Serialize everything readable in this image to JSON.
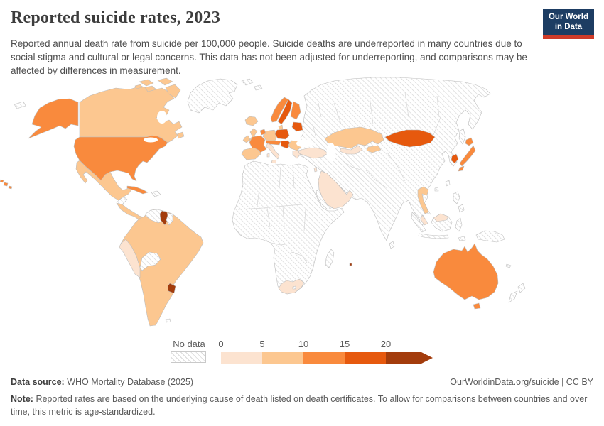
{
  "header": {
    "title": "Reported suicide rates, 2023",
    "subtitle": "Reported annual death rate from suicide per 100,000 people. Suicide deaths are underreported in many countries due to social stigma and cultural or legal concerns. This data has not been adjusted for underreporting, and comparisons may be affected by differences in measurement.",
    "logo": {
      "line1": "Our World",
      "line2": "in Data",
      "bg_color": "#1d3d63",
      "accent_color": "#cf3b29"
    }
  },
  "legend": {
    "no_data_label": "No data",
    "bins": [
      {
        "label": "0",
        "range": "0-5",
        "color": "#fce3d0"
      },
      {
        "label": "5",
        "range": "5-10",
        "color": "#fcc790"
      },
      {
        "label": "10",
        "range": "10-15",
        "color": "#f98a3d"
      },
      {
        "label": "15",
        "range": "15-20",
        "color": "#e6590e"
      },
      {
        "label": "20",
        "range": "20+",
        "color": "#a33c0c"
      }
    ],
    "seg_width": 58,
    "last_seg_width": 50
  },
  "footer": {
    "source_label": "Data source:",
    "source_value": "WHO Mortality Database (2025)",
    "credit": "OurWorldinData.org/suicide | CC BY",
    "note_label": "Note:",
    "note_value": "Reported rates are based on the underlying cause of death listed on death certificates. To allow for comparisons between countries and over time, this metric is age-standardized."
  },
  "chart_data": {
    "type": "choropleth_map",
    "title": "Reported suicide rates, 2023",
    "year": "2023",
    "unit": "reported suicide deaths per 100,000 people (age-standardized)",
    "legend_position": "bottom",
    "color_scale": {
      "bins": [
        "0-5",
        "5-10",
        "10-15",
        "15-20",
        "20+"
      ],
      "colors": [
        "#fce3d0",
        "#fcc790",
        "#f98a3d",
        "#e6590e",
        "#a33c0c"
      ],
      "no_data": "hatched gray diagonal stripes"
    },
    "countries_by_bin": {
      "0-5": [
        "Peru",
        "Italy",
        "Greece",
        "Turkey",
        "Saudi Arabia",
        "Oman",
        "Israel",
        "South Africa",
        "Malaysia",
        "Uzbekistan"
      ],
      "5-10": [
        "Canada",
        "Mexico",
        "Honduras",
        "Nicaragua",
        "Costa Rica",
        "Panama",
        "Colombia",
        "Ecuador",
        "Brazil",
        "Paraguay",
        "Argentina",
        "Chile",
        "Iceland",
        "United Kingdom",
        "Ireland",
        "Spain",
        "Portugal",
        "Germany",
        "Denmark",
        "Romania",
        "Serbia",
        "Bulgaria",
        "Kazakhstan",
        "Kyrgyzstan",
        "Thailand"
      ],
      "10-15": [
        "United States",
        "Cuba",
        "France",
        "Belgium",
        "Netherlands",
        "Switzerland",
        "Austria",
        "Czechia",
        "Norway",
        "Finland",
        "Japan",
        "Australia"
      ],
      "15-20": [
        "Mongolia",
        "South Korea",
        "Sweden",
        "Poland",
        "Estonia",
        "Latvia",
        "Lithuania",
        "Hungary",
        "Slovenia",
        "Croatia"
      ],
      "20+": [
        "Guyana",
        "Uruguay",
        "Mauritius"
      ],
      "no_data": [
        "Greenland",
        "Russia",
        "China",
        "India",
        "Venezuela",
        "Suriname",
        "Bolivia",
        "Guatemala",
        "Haiti",
        "Dominican Republic",
        "Ukraine",
        "Belarus",
        "Iran",
        "Iraq",
        "Yemen",
        "Afghanistan",
        "Pakistan",
        "Myanmar",
        "Vietnam",
        "Cambodia",
        "Laos",
        "Indonesia",
        "Philippines",
        "Papua New Guinea",
        "New Zealand",
        "Madagascar",
        "North Korea",
        "Taiwan",
        "Sri Lanka",
        "most of Africa"
      ]
    }
  },
  "map": {
    "ocean_color": "#ffffff",
    "border_color": "#bdbdbd",
    "hatch_color": "#d4d4d4",
    "countries": {
      "alaska": "10-15",
      "usa": "10-15",
      "hawaii-1": "10-15",
      "hawaii-2": "10-15",
      "hawaii-3": "10-15",
      "cuba": "10-15",
      "france": "10-15",
      "benelux": "10-15",
      "alpine-states": "10-15",
      "norway": "10-15",
      "finland": "10-15",
      "japan-hokkaido": "10-15",
      "japan-honshu": "10-15",
      "japan-kyushu": "10-15",
      "australia": "10-15",
      "tasmania": "10-15",
      "canada": "5-10",
      "canada-island-1": "5-10",
      "canada-island-2": "5-10",
      "canada-island-3": "5-10",
      "canada-island-4": "5-10",
      "canada-island-5": "5-10",
      "newfoundland": "5-10",
      "mexico": "5-10",
      "central-america": "5-10",
      "south-america": "5-10",
      "iceland": "5-10",
      "united-kingdom": "5-10",
      "ireland": "5-10",
      "iberia": "5-10",
      "germany": "5-10",
      "denmark": "5-10",
      "balkans-east": "5-10",
      "kazakhstan": "5-10",
      "kyrgyzstan": "5-10",
      "thailand": "5-10",
      "peru": "0-5",
      "turkey": "0-5",
      "arabia": "0-5",
      "israel": "0-5",
      "south-africa": "0-5",
      "italy": "0-5",
      "sicily": "0-5",
      "sardinia": "0-5",
      "greece": "0-5",
      "malaysia-peninsula": "0-5",
      "malaysia-borneo": "0-5",
      "uzbekistan": "0-5",
      "sweden": "15-20",
      "poland": "15-20",
      "baltic-states": "15-20",
      "hungary-croatia": "15-20",
      "mongolia": "15-20",
      "south-korea": "15-20",
      "guyana": "20+",
      "uruguay": "20+",
      "mauritius": "20+",
      "greenland": "no_data",
      "eurasia": "no_data",
      "venezuela": "no_data",
      "suriname": "no_data",
      "bolivia": "no_data",
      "guatemala": "no_data",
      "hispaniola": "no_data",
      "africa": "no_data",
      "madagascar": "no_data",
      "lesotho": "no_data",
      "yemen": "no_data",
      "sakhalin": "no_data",
      "taiwan": "no_data",
      "hainan": "no_data",
      "sri-lanka": "no_data",
      "philippines-1": "no_data",
      "philippines-2": "no_data",
      "sumatra": "no_data",
      "java": "no_data",
      "borneo": "no_data",
      "sulawesi": "no_data",
      "timor": "no_data",
      "new-guinea": "no_data",
      "new-caledonia": "no_data",
      "new-zealand-north": "no_data",
      "new-zealand-south": "no_data",
      "falklands": "no_data",
      "svalbard-1": "no_data",
      "svalbard-2": "no_data",
      "chukotka-wrap": "no_data"
    }
  }
}
